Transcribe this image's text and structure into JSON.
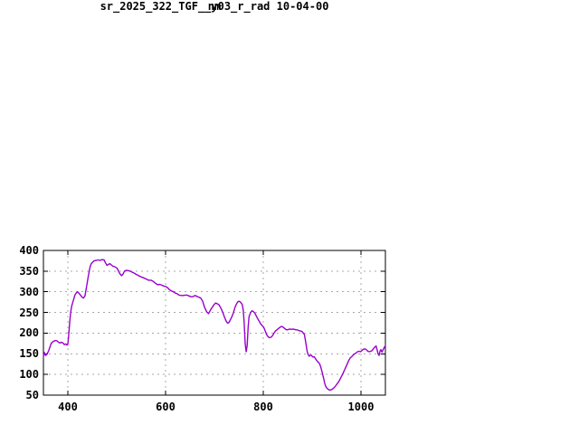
{
  "window": {
    "background": "#ffffff"
  },
  "chart_data": {
    "type": "line",
    "title": "sr_2025_322_TGF__y03_r_rad 10-04-00",
    "xlabel": "nm",
    "ylabel": "",
    "xlim": [
      350,
      1050
    ],
    "ylim": [
      50,
      400
    ],
    "xticks": [
      400,
      600,
      800,
      1000
    ],
    "yticks": [
      50,
      100,
      150,
      200,
      250,
      300,
      350,
      400
    ],
    "grid": true,
    "legend_position": "none",
    "colors": {
      "line": "#9900cc",
      "grid": "#a8a8a8",
      "axis": "#000000",
      "text": "#000000",
      "background": "#ffffff"
    },
    "series": [
      {
        "name": "sr_2025_322_TGF__y03_r_rad",
        "points": [
          [
            350,
            143
          ],
          [
            351,
            149
          ],
          [
            352,
            153
          ],
          [
            353,
            148
          ],
          [
            355,
            146
          ],
          [
            357,
            150
          ],
          [
            359,
            153
          ],
          [
            361,
            158
          ],
          [
            363,
            165
          ],
          [
            366,
            175
          ],
          [
            369,
            179
          ],
          [
            372,
            181
          ],
          [
            375,
            182
          ],
          [
            378,
            181
          ],
          [
            381,
            178
          ],
          [
            384,
            176
          ],
          [
            387,
            178
          ],
          [
            390,
            176
          ],
          [
            393,
            172
          ],
          [
            396,
            174
          ],
          [
            398,
            171
          ],
          [
            400,
            173
          ],
          [
            402,
            200
          ],
          [
            404,
            230
          ],
          [
            406,
            252
          ],
          [
            408,
            266
          ],
          [
            410,
            274
          ],
          [
            412,
            282
          ],
          [
            414,
            291
          ],
          [
            416,
            295
          ],
          [
            418,
            298
          ],
          [
            420,
            300
          ],
          [
            423,
            296
          ],
          [
            426,
            292
          ],
          [
            429,
            287
          ],
          [
            432,
            285
          ],
          [
            435,
            290
          ],
          [
            438,
            310
          ],
          [
            441,
            331
          ],
          [
            444,
            352
          ],
          [
            446,
            362
          ],
          [
            448,
            368
          ],
          [
            451,
            372
          ],
          [
            454,
            375
          ],
          [
            458,
            376
          ],
          [
            462,
            377
          ],
          [
            466,
            376
          ],
          [
            470,
            378
          ],
          [
            474,
            377
          ],
          [
            477,
            370
          ],
          [
            480,
            364
          ],
          [
            483,
            366
          ],
          [
            486,
            368
          ],
          [
            489,
            365
          ],
          [
            492,
            362
          ],
          [
            495,
            361
          ],
          [
            498,
            359
          ],
          [
            501,
            357
          ],
          [
            504,
            349
          ],
          [
            507,
            343
          ],
          [
            510,
            339
          ],
          [
            513,
            343
          ],
          [
            516,
            350
          ],
          [
            520,
            352
          ],
          [
            524,
            351
          ],
          [
            528,
            350
          ],
          [
            532,
            347
          ],
          [
            536,
            345
          ],
          [
            540,
            342
          ],
          [
            545,
            339
          ],
          [
            550,
            336
          ],
          [
            555,
            334
          ],
          [
            560,
            331
          ],
          [
            565,
            328
          ],
          [
            570,
            328
          ],
          [
            575,
            325
          ],
          [
            580,
            320
          ],
          [
            584,
            317
          ],
          [
            588,
            318
          ],
          [
            592,
            316
          ],
          [
            596,
            314
          ],
          [
            600,
            313
          ],
          [
            604,
            310
          ],
          [
            608,
            305
          ],
          [
            612,
            302
          ],
          [
            616,
            300
          ],
          [
            620,
            297
          ],
          [
            624,
            295
          ],
          [
            628,
            292
          ],
          [
            632,
            291
          ],
          [
            636,
            291
          ],
          [
            640,
            292
          ],
          [
            644,
            292
          ],
          [
            648,
            290
          ],
          [
            652,
            288
          ],
          [
            656,
            288
          ],
          [
            660,
            291
          ],
          [
            664,
            289
          ],
          [
            668,
            287
          ],
          [
            672,
            285
          ],
          [
            676,
            277
          ],
          [
            680,
            262
          ],
          [
            684,
            252
          ],
          [
            688,
            247
          ],
          [
            692,
            256
          ],
          [
            696,
            263
          ],
          [
            700,
            270
          ],
          [
            703,
            273
          ],
          [
            706,
            271
          ],
          [
            709,
            269
          ],
          [
            712,
            263
          ],
          [
            715,
            256
          ],
          [
            718,
            247
          ],
          [
            721,
            238
          ],
          [
            724,
            229
          ],
          [
            727,
            224
          ],
          [
            730,
            226
          ],
          [
            733,
            233
          ],
          [
            736,
            240
          ],
          [
            739,
            250
          ],
          [
            742,
            262
          ],
          [
            745,
            270
          ],
          [
            748,
            276
          ],
          [
            751,
            277
          ],
          [
            754,
            274
          ],
          [
            757,
            269
          ],
          [
            759,
            255
          ],
          [
            761,
            225
          ],
          [
            763,
            175
          ],
          [
            765,
            155
          ],
          [
            767,
            170
          ],
          [
            769,
            215
          ],
          [
            771,
            240
          ],
          [
            774,
            250
          ],
          [
            777,
            254
          ],
          [
            780,
            252
          ],
          [
            783,
            248
          ],
          [
            786,
            241
          ],
          [
            789,
            234
          ],
          [
            792,
            228
          ],
          [
            795,
            222
          ],
          [
            798,
            218
          ],
          [
            801,
            214
          ],
          [
            804,
            205
          ],
          [
            807,
            196
          ],
          [
            810,
            191
          ],
          [
            813,
            189
          ],
          [
            816,
            190
          ],
          [
            819,
            194
          ],
          [
            822,
            200
          ],
          [
            825,
            205
          ],
          [
            828,
            208
          ],
          [
            831,
            211
          ],
          [
            834,
            214
          ],
          [
            837,
            216
          ],
          [
            840,
            215
          ],
          [
            843,
            212
          ],
          [
            846,
            209
          ],
          [
            849,
            208
          ],
          [
            852,
            209
          ],
          [
            855,
            210
          ],
          [
            858,
            209
          ],
          [
            861,
            210
          ],
          [
            864,
            209
          ],
          [
            867,
            208
          ],
          [
            870,
            208
          ],
          [
            873,
            206
          ],
          [
            876,
            205
          ],
          [
            879,
            204
          ],
          [
            882,
            200
          ],
          [
            884,
            197
          ],
          [
            886,
            185
          ],
          [
            888,
            170
          ],
          [
            890,
            155
          ],
          [
            892,
            148
          ],
          [
            894,
            144
          ],
          [
            896,
            146
          ],
          [
            898,
            147
          ],
          [
            900,
            144
          ],
          [
            902,
            142
          ],
          [
            904,
            143
          ],
          [
            906,
            140
          ],
          [
            908,
            136
          ],
          [
            910,
            133
          ],
          [
            912,
            130
          ],
          [
            914,
            128
          ],
          [
            916,
            124
          ],
          [
            918,
            117
          ],
          [
            920,
            108
          ],
          [
            922,
            98
          ],
          [
            924,
            88
          ],
          [
            926,
            78
          ],
          [
            928,
            71
          ],
          [
            930,
            67
          ],
          [
            933,
            64
          ],
          [
            936,
            62
          ],
          [
            939,
            63
          ],
          [
            942,
            65
          ],
          [
            945,
            68
          ],
          [
            948,
            72
          ],
          [
            951,
            77
          ],
          [
            954,
            82
          ],
          [
            957,
            88
          ],
          [
            960,
            95
          ],
          [
            963,
            102
          ],
          [
            966,
            110
          ],
          [
            969,
            118
          ],
          [
            972,
            126
          ],
          [
            975,
            134
          ],
          [
            978,
            140
          ],
          [
            981,
            143
          ],
          [
            984,
            147
          ],
          [
            987,
            150
          ],
          [
            990,
            152
          ],
          [
            993,
            155
          ],
          [
            996,
            156
          ],
          [
            999,
            155
          ],
          [
            1002,
            158
          ],
          [
            1005,
            161
          ],
          [
            1008,
            162
          ],
          [
            1011,
            160
          ],
          [
            1014,
            156
          ],
          [
            1017,
            155
          ],
          [
            1020,
            156
          ],
          [
            1023,
            158
          ],
          [
            1026,
            163
          ],
          [
            1029,
            167
          ],
          [
            1031,
            169
          ],
          [
            1033,
            160
          ],
          [
            1035,
            150
          ],
          [
            1037,
            146
          ],
          [
            1039,
            157
          ],
          [
            1041,
            160
          ],
          [
            1043,
            154
          ],
          [
            1045,
            159
          ],
          [
            1047,
            164
          ],
          [
            1049,
            168
          ],
          [
            1050,
            170
          ]
        ]
      }
    ]
  }
}
